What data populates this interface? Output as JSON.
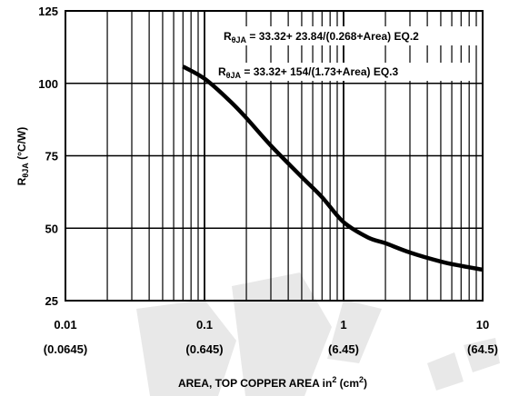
{
  "chart_data": {
    "type": "line",
    "title": "",
    "x_scale": "log",
    "xlim": [
      0.01,
      10
    ],
    "ylim": [
      25,
      125
    ],
    "grid": true,
    "x_ticks": [
      {
        "value": 0.01,
        "label": "0.01",
        "sublabel": "(0.0645)"
      },
      {
        "value": 0.1,
        "label": "0.1",
        "sublabel": "(0.645)"
      },
      {
        "value": 1,
        "label": "1",
        "sublabel": "(6.45)"
      },
      {
        "value": 10,
        "label": "10",
        "sublabel": "(64.5)"
      }
    ],
    "y_ticks": [
      25,
      50,
      75,
      100,
      125
    ],
    "xlabel": {
      "text": "AREA, TOP COPPER AREA in",
      "sup1": "2",
      "mid": " (cm",
      "sup2": "2",
      "end": ")"
    },
    "ylabel": {
      "text": "R",
      "sub": "θJA",
      "unit": " (°C/W)"
    },
    "annotations": [
      {
        "id": "eq2",
        "prefix": "R",
        "sub": "θJA",
        "text": " = 33.32+ 23.84/(0.268+Area) EQ.2"
      },
      {
        "id": "eq3",
        "prefix": "R",
        "sub": "θJA",
        "text": " = 33.32+ 154/(1.73+Area) EQ.3"
      }
    ],
    "series": [
      {
        "x": [
          0.07,
          0.1,
          0.15,
          0.2,
          0.3,
          0.5,
          0.7,
          1.0,
          1.5,
          2,
          3,
          5,
          7,
          10
        ],
        "y": [
          105.8,
          101.6,
          94.2,
          88.0,
          78.5,
          67.7,
          60.7,
          52.1,
          46.8,
          44.8,
          41.6,
          38.5,
          37.0,
          35.7
        ]
      }
    ]
  }
}
